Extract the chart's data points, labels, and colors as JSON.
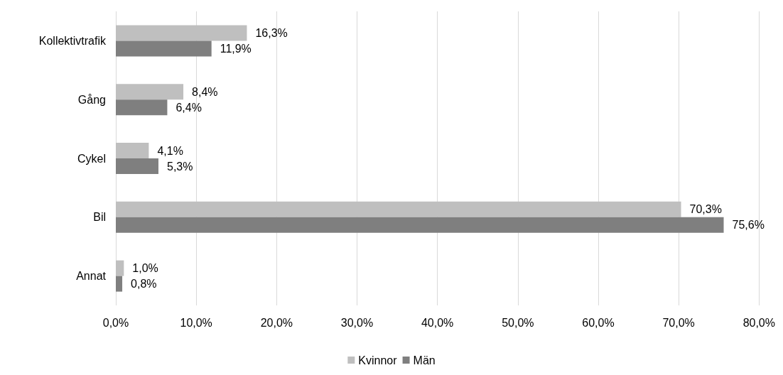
{
  "chart_data": {
    "type": "bar",
    "orientation": "horizontal",
    "categories": [
      "Kollektivtrafik",
      "Gång",
      "Cykel",
      "Bil",
      "Annat"
    ],
    "series": [
      {
        "name": "Kvinnor",
        "color": "#bfbfbf",
        "values": [
          16.3,
          8.4,
          4.1,
          70.3,
          1.0
        ],
        "value_labels": [
          "16,3%",
          "8,4%",
          "4,1%",
          "70,3%",
          "1,0%"
        ]
      },
      {
        "name": "Män",
        "color": "#7f7f7f",
        "values": [
          11.9,
          6.4,
          5.3,
          75.6,
          0.8
        ],
        "value_labels": [
          "11,9%",
          "6,4%",
          "5,3%",
          "75,6%",
          "0,8%"
        ]
      }
    ],
    "xlim": [
      0,
      80
    ],
    "xticks": [
      {
        "value": 0,
        "label": "0,0%"
      },
      {
        "value": 10,
        "label": "10,0%"
      },
      {
        "value": 20,
        "label": "20,0%"
      },
      {
        "value": 30,
        "label": "30,0%"
      },
      {
        "value": 40,
        "label": "40,0%"
      },
      {
        "value": 50,
        "label": "50,0%"
      },
      {
        "value": 60,
        "label": "60,0%"
      },
      {
        "value": 70,
        "label": "70,0%"
      },
      {
        "value": 80,
        "label": "80,0%"
      }
    ],
    "grid": "x",
    "legend": "bottom"
  }
}
